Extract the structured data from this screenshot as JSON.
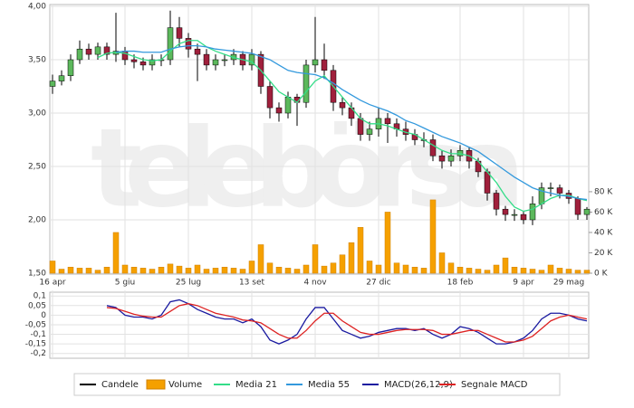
{
  "chart_data": [
    {
      "type": "candlestick",
      "watermark": "telebörsa",
      "categories": [
        "16 apr",
        null,
        null,
        null,
        null,
        null,
        null,
        null,
        "5 giu",
        null,
        null,
        null,
        null,
        null,
        null,
        "25 lug",
        null,
        null,
        null,
        null,
        null,
        null,
        "13 set",
        null,
        null,
        null,
        null,
        null,
        null,
        "4 nov",
        null,
        null,
        null,
        null,
        null,
        null,
        "27 dic",
        null,
        null,
        null,
        null,
        null,
        null,
        null,
        null,
        "18 feb",
        null,
        null,
        null,
        null,
        null,
        null,
        "9 apr",
        null,
        null,
        null,
        null,
        "29 mag",
        null,
        null
      ],
      "ylim": [
        1.5,
        4.0
      ],
      "yticks": [
        {
          "value": 1.5,
          "label": "1,50"
        },
        {
          "value": 2,
          "label": "2,00"
        },
        {
          "value": 2.5,
          "label": "2,50"
        },
        {
          "value": 3,
          "label": "3,00"
        },
        {
          "value": 3.5,
          "label": "3,50"
        },
        {
          "value": 4,
          "label": "4,00"
        }
      ],
      "y2lim": [
        0,
        262000
      ],
      "y2ticks": [
        {
          "value": 0,
          "label": "0 K"
        },
        {
          "value": 20000,
          "label": "20 K"
        },
        {
          "value": 40000,
          "label": "40 K"
        },
        {
          "value": 60000,
          "label": "60 K"
        },
        {
          "value": 80000,
          "label": "80 K"
        }
      ],
      "grid": true,
      "series": [
        {
          "name": "Candele",
          "color": "#000000",
          "up_color": "#5cb85c",
          "down_color": "#a0203c",
          "open": [
            3.25,
            3.3,
            3.35,
            3.5,
            3.6,
            3.55,
            3.62,
            3.55,
            3.58,
            3.5,
            3.48,
            3.45,
            3.5,
            3.5,
            3.8,
            3.7,
            3.6,
            3.55,
            3.45,
            3.5,
            3.5,
            3.55,
            3.45,
            3.55,
            3.25,
            3.05,
            3.0,
            3.15,
            3.1,
            3.45,
            3.5,
            3.4,
            3.1,
            3.05,
            2.95,
            2.8,
            2.85,
            2.95,
            2.9,
            2.85,
            2.8,
            2.75,
            2.75,
            2.6,
            2.55,
            2.6,
            2.65,
            2.55,
            2.45,
            2.25,
            2.1,
            2.05,
            2.05,
            2.0,
            2.15,
            2.3,
            2.3,
            2.25,
            2.2,
            2.05
          ],
          "high": [
            3.36,
            3.4,
            3.55,
            3.68,
            3.65,
            3.66,
            3.66,
            3.94,
            3.62,
            3.55,
            3.52,
            3.55,
            3.55,
            3.96,
            3.9,
            3.75,
            3.65,
            3.6,
            3.55,
            3.55,
            3.6,
            3.58,
            3.6,
            3.58,
            3.3,
            3.1,
            3.2,
            3.18,
            3.5,
            3.9,
            3.65,
            3.45,
            3.15,
            3.1,
            3.0,
            2.92,
            3.05,
            3.0,
            2.95,
            2.92,
            2.85,
            2.82,
            2.8,
            2.65,
            2.66,
            2.7,
            2.68,
            2.58,
            2.48,
            2.28,
            2.13,
            2.1,
            2.08,
            2.22,
            2.35,
            2.35,
            2.33,
            2.28,
            2.22,
            2.12
          ],
          "low": [
            3.18,
            3.26,
            3.3,
            3.46,
            3.5,
            3.5,
            3.5,
            3.48,
            3.45,
            3.42,
            3.4,
            3.4,
            3.44,
            3.45,
            3.62,
            3.52,
            3.3,
            3.4,
            3.4,
            3.44,
            3.45,
            3.4,
            3.4,
            3.18,
            2.95,
            2.92,
            2.95,
            2.88,
            3.05,
            3.38,
            3.32,
            3.02,
            2.98,
            2.88,
            2.74,
            2.74,
            2.78,
            2.72,
            2.78,
            2.74,
            2.7,
            2.68,
            2.55,
            2.48,
            2.5,
            2.55,
            2.48,
            2.4,
            2.18,
            2.04,
            1.99,
            1.99,
            1.96,
            1.95,
            2.1,
            2.22,
            2.2,
            2.15,
            2.0,
            2.0
          ],
          "close": [
            3.3,
            3.35,
            3.5,
            3.6,
            3.55,
            3.62,
            3.55,
            3.58,
            3.5,
            3.48,
            3.45,
            3.5,
            3.5,
            3.8,
            3.7,
            3.6,
            3.55,
            3.45,
            3.5,
            3.5,
            3.55,
            3.45,
            3.55,
            3.25,
            3.05,
            3.0,
            3.15,
            3.1,
            3.45,
            3.5,
            3.4,
            3.1,
            3.05,
            2.95,
            2.8,
            2.85,
            2.95,
            2.9,
            2.85,
            2.8,
            2.75,
            2.75,
            2.6,
            2.55,
            2.6,
            2.65,
            2.55,
            2.45,
            2.25,
            2.1,
            2.05,
            2.05,
            2.0,
            2.15,
            2.3,
            2.3,
            2.25,
            2.2,
            2.05,
            2.1
          ]
        },
        {
          "name": "Volume",
          "color": "#f5a000",
          "axis": "y2",
          "values": [
            12000,
            4000,
            6000,
            5000,
            5000,
            3000,
            6000,
            40000,
            8000,
            6000,
            5000,
            4000,
            6000,
            9000,
            7000,
            5000,
            8000,
            4000,
            5000,
            6000,
            5000,
            4000,
            12000,
            28000,
            10000,
            6000,
            5000,
            4000,
            8000,
            28000,
            7000,
            10000,
            18000,
            30000,
            45000,
            12000,
            8000,
            60000,
            10000,
            8000,
            6000,
            5000,
            72000,
            20000,
            10000,
            6000,
            5000,
            4000,
            3000,
            8000,
            15000,
            6000,
            5000,
            4000,
            3000,
            8000,
            5000,
            4000,
            3000,
            3000
          ]
        },
        {
          "name": "Media 21",
          "color": "#33dd88",
          "values": [
            null,
            null,
            null,
            null,
            null,
            3.52,
            3.56,
            3.57,
            3.56,
            3.53,
            3.5,
            3.49,
            3.5,
            3.58,
            3.65,
            3.68,
            3.68,
            3.62,
            3.58,
            3.55,
            3.52,
            3.5,
            3.48,
            3.4,
            3.3,
            3.2,
            3.15,
            3.1,
            3.2,
            3.3,
            3.35,
            3.25,
            3.15,
            3.05,
            2.95,
            2.9,
            2.9,
            2.88,
            2.85,
            2.82,
            2.8,
            2.75,
            2.7,
            2.65,
            2.62,
            2.62,
            2.6,
            2.55,
            2.45,
            2.35,
            2.22,
            2.12,
            2.08,
            2.1,
            2.15,
            2.2,
            2.23,
            2.23,
            2.2,
            2.18
          ]
        },
        {
          "name": "Media 55",
          "color": "#3399dd",
          "values": [
            null,
            null,
            null,
            null,
            null,
            null,
            null,
            3.57,
            3.58,
            3.58,
            3.57,
            3.57,
            3.57,
            3.6,
            3.62,
            3.63,
            3.63,
            3.62,
            3.6,
            3.59,
            3.58,
            3.57,
            3.56,
            3.53,
            3.5,
            3.45,
            3.4,
            3.38,
            3.37,
            3.36,
            3.33,
            3.28,
            3.22,
            3.17,
            3.12,
            3.08,
            3.05,
            3.02,
            2.98,
            2.93,
            2.9,
            2.86,
            2.82,
            2.78,
            2.75,
            2.72,
            2.68,
            2.64,
            2.58,
            2.52,
            2.46,
            2.4,
            2.35,
            2.3,
            2.27,
            2.25,
            2.23,
            2.22,
            2.2,
            2.19
          ]
        }
      ]
    },
    {
      "type": "line",
      "ylim": [
        -0.225,
        0.12
      ],
      "yticks": [
        {
          "value": -0.2,
          "label": "-0,2"
        },
        {
          "value": -0.15,
          "label": "-0,15"
        },
        {
          "value": -0.1,
          "label": "-0,1"
        },
        {
          "value": -0.05,
          "label": "-0,05"
        },
        0,
        {
          "value": 0.05,
          "label": "0,05"
        },
        {
          "value": 0.1,
          "label": "0,1"
        }
      ],
      "grid": true,
      "series": [
        {
          "name": "MACD(26,12,9)",
          "color": "#1a1aa0",
          "values": [
            null,
            null,
            null,
            null,
            null,
            null,
            0.05,
            0.04,
            0.0,
            -0.01,
            -0.01,
            -0.02,
            0.0,
            0.07,
            0.08,
            0.06,
            0.03,
            0.01,
            -0.01,
            -0.02,
            -0.02,
            -0.04,
            -0.02,
            -0.06,
            -0.13,
            -0.15,
            -0.13,
            -0.1,
            -0.02,
            0.04,
            0.04,
            -0.02,
            -0.08,
            -0.1,
            -0.12,
            -0.11,
            -0.09,
            -0.08,
            -0.07,
            -0.07,
            -0.08,
            -0.07,
            -0.1,
            -0.12,
            -0.1,
            -0.06,
            -0.07,
            -0.09,
            -0.12,
            -0.15,
            -0.15,
            -0.14,
            -0.12,
            -0.08,
            -0.02,
            0.01,
            0.01,
            0.0,
            -0.02,
            -0.03
          ]
        },
        {
          "name": "Segnale MACD",
          "color": "#dd2222",
          "values": [
            null,
            null,
            null,
            null,
            null,
            null,
            0.04,
            0.035,
            0.02,
            0.005,
            -0.005,
            -0.01,
            -0.01,
            0.02,
            0.05,
            0.06,
            0.05,
            0.03,
            0.01,
            0.0,
            -0.01,
            -0.025,
            -0.03,
            -0.04,
            -0.07,
            -0.1,
            -0.12,
            -0.12,
            -0.08,
            -0.03,
            0.01,
            0.01,
            -0.03,
            -0.06,
            -0.09,
            -0.1,
            -0.1,
            -0.09,
            -0.08,
            -0.075,
            -0.075,
            -0.075,
            -0.08,
            -0.1,
            -0.1,
            -0.09,
            -0.08,
            -0.08,
            -0.1,
            -0.12,
            -0.14,
            -0.14,
            -0.13,
            -0.11,
            -0.07,
            -0.03,
            -0.01,
            0.0,
            -0.01,
            -0.02
          ]
        }
      ]
    }
  ]
}
